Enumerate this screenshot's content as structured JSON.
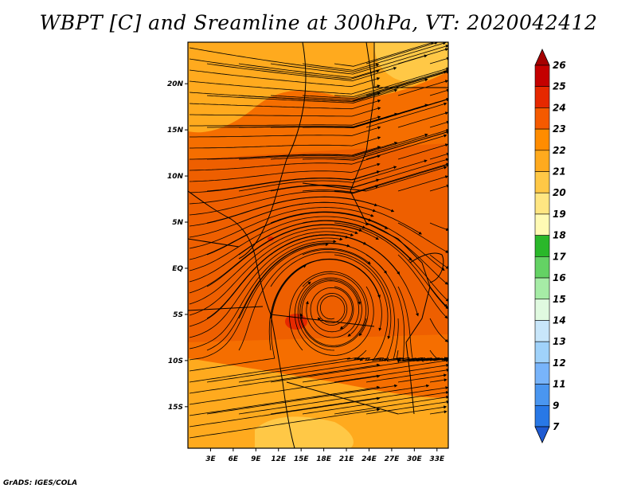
{
  "title": "WBPT [C] and Sreamline at 300hPa, VT: 2020042412",
  "credit": "GrADS: IGES/COLA",
  "map": {
    "lon_range": [
      0,
      34.5
    ],
    "lat_range": [
      -19.5,
      24.5
    ],
    "x_ticks": [
      {
        "lon": 3,
        "label": "3E"
      },
      {
        "lon": 6,
        "label": "6E"
      },
      {
        "lon": 9,
        "label": "9E"
      },
      {
        "lon": 12,
        "label": "12E"
      },
      {
        "lon": 15,
        "label": "15E"
      },
      {
        "lon": 18,
        "label": "18E"
      },
      {
        "lon": 21,
        "label": "21E"
      },
      {
        "lon": 24,
        "label": "24E"
      },
      {
        "lon": 27,
        "label": "27E"
      },
      {
        "lon": 30,
        "label": "30E"
      },
      {
        "lon": 33,
        "label": "33E"
      }
    ],
    "y_ticks": [
      {
        "lat": 20,
        "label": "20N"
      },
      {
        "lat": 15,
        "label": "15N"
      },
      {
        "lat": 10,
        "label": "10N"
      },
      {
        "lat": 5,
        "label": "5N"
      },
      {
        "lat": 0,
        "label": "EQ"
      },
      {
        "lat": -5,
        "label": "5S"
      },
      {
        "lat": -10,
        "label": "10S"
      },
      {
        "lat": -15,
        "label": "15S"
      }
    ]
  },
  "colorbar": {
    "levels": [
      "26",
      "25",
      "24",
      "23",
      "22",
      "21",
      "20",
      "19",
      "18",
      "17",
      "16",
      "15",
      "14",
      "13",
      "12",
      "11",
      "9",
      "7"
    ],
    "colors": [
      "#a50000",
      "#c40000",
      "#e62800",
      "#f55a00",
      "#ff8c00",
      "#ffaa1e",
      "#ffc846",
      "#ffe682",
      "#fffab4",
      "#2ab82a",
      "#64d264",
      "#a6eca6",
      "#e0fae0",
      "#c8e6fa",
      "#a0d2fa",
      "#78b4fa",
      "#4a96f0",
      "#2878e6",
      "#1e5ad2"
    ]
  },
  "fields": {
    "wbpt_regions": [
      {
        "level": "21",
        "color": "#ffaa1e",
        "desc": "north"
      },
      {
        "level": "20",
        "color": "#ffc846",
        "desc": "northeast corner"
      },
      {
        "level": "22",
        "color": "#f56e00",
        "desc": "central band"
      },
      {
        "level": "23",
        "color": "#e65a00",
        "desc": "max"
      },
      {
        "level": "21",
        "color": "#ffaa1e",
        "desc": "south"
      },
      {
        "level": "20",
        "color": "#ffc846",
        "desc": "south patch"
      }
    ]
  }
}
